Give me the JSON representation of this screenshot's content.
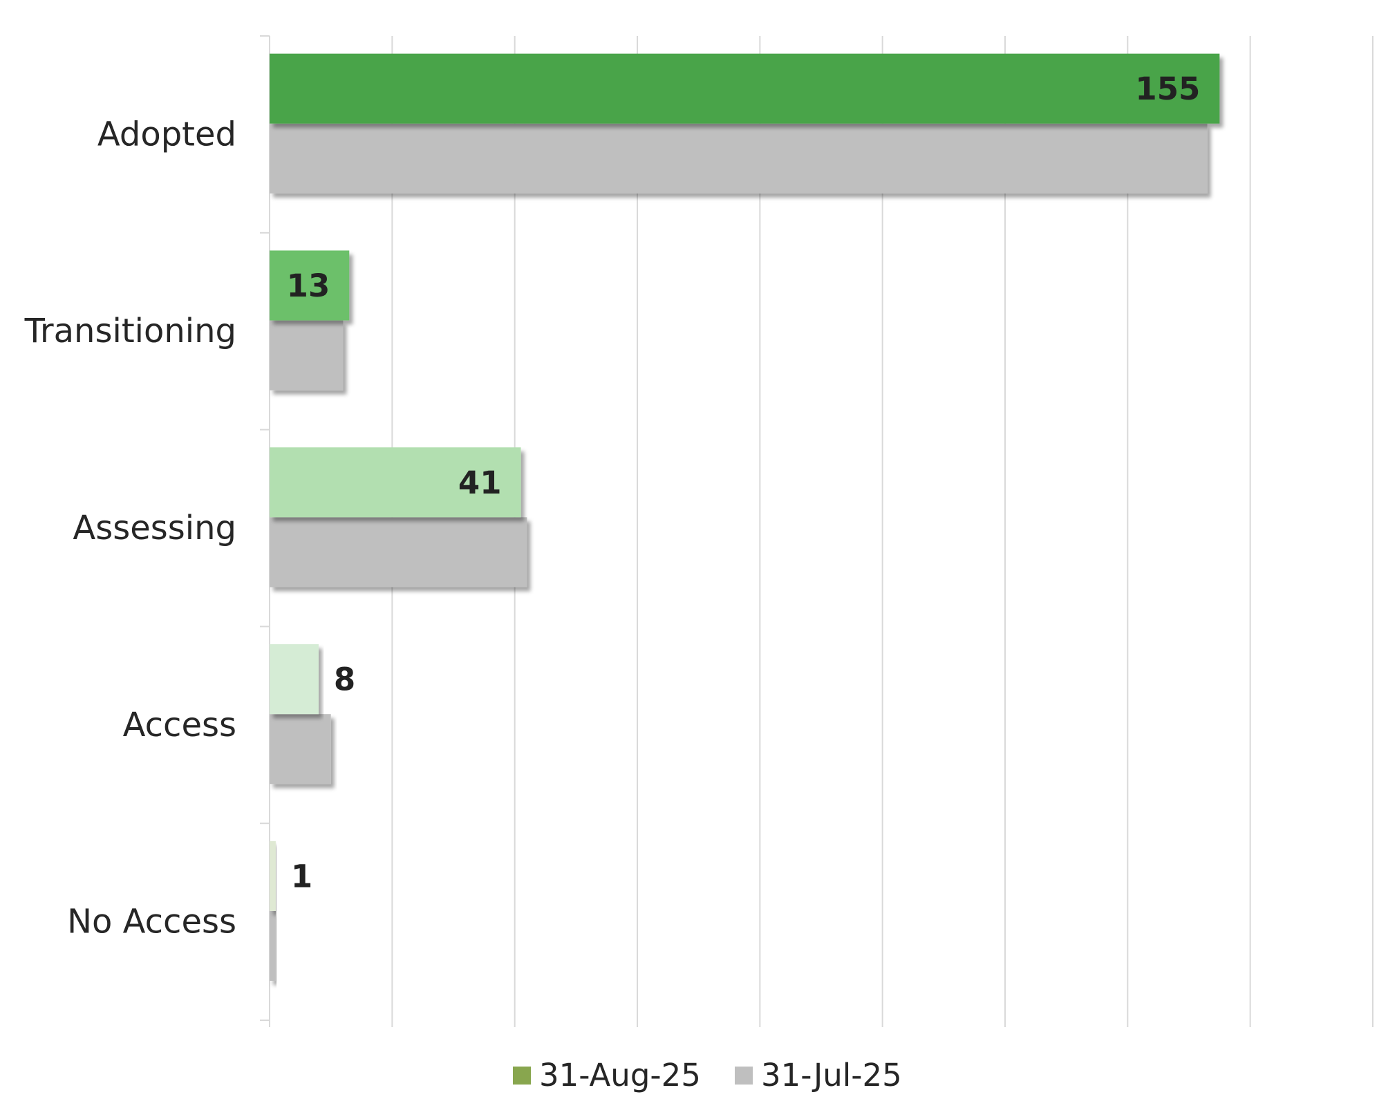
{
  "chart_data": {
    "type": "bar",
    "orientation": "horizontal",
    "categories": [
      "Adopted",
      "Transitioning",
      "Assessing",
      "Access",
      "No Access"
    ],
    "series": [
      {
        "name": "31-Aug-25",
        "legend_color": "#88a64e",
        "bar_colors": [
          "#4aa448",
          "#6cc06a",
          "#b2dfb0",
          "#d5ecd5",
          "#dfe9d3"
        ],
        "values": [
          155,
          13,
          41,
          8,
          1
        ]
      },
      {
        "name": "31-Jul-25",
        "legend_color": "#bfbfbf",
        "bar_colors": [
          "#bfbfbf",
          "#bfbfbf",
          "#bfbfbf",
          "#bfbfbf",
          "#bfbfbf"
        ],
        "values": [
          153,
          12,
          42,
          10,
          1
        ]
      }
    ],
    "data_labels_series": "31-Aug-25",
    "xlim": [
      0,
      180
    ],
    "x_tick_step": 20,
    "grid": "vertical",
    "x_tick_labels_shown": false,
    "legend": "bottom",
    "title": "",
    "xlabel": "",
    "ylabel": ""
  }
}
